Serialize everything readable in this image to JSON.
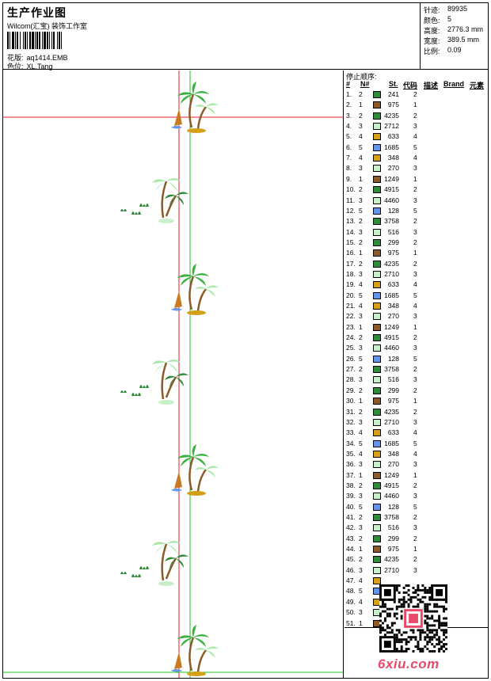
{
  "header": {
    "title": "生产作业图",
    "company": "Wilcom(汇宝) 装饰工作室",
    "design_label": "花版:",
    "design_value": "aq1414.EMB",
    "color_label": "色位:",
    "color_value": "XL.Tang"
  },
  "stats": [
    {
      "label": "针迹:",
      "value": "89935"
    },
    {
      "label": "颜色:",
      "value": "5"
    },
    {
      "label": "高度:",
      "value": "2776.3 mm"
    },
    {
      "label": "宽度:",
      "value": "389.5 mm"
    },
    {
      "label": "比例:",
      "value": "0.09"
    }
  ],
  "table": {
    "stop_title": "停止顺序:",
    "headers": [
      "#",
      "N#",
      "St.",
      "代码",
      "描述",
      "Brand",
      "元素"
    ],
    "rows": [
      {
        "n": "1.",
        "ne": "2",
        "color": "#2e8b3a",
        "code": "241",
        "st": "2"
      },
      {
        "n": "2.",
        "ne": "1",
        "color": "#8b5a2b",
        "code": "975",
        "st": "1"
      },
      {
        "n": "3.",
        "ne": "2",
        "color": "#2e8b3a",
        "code": "4235",
        "st": "2"
      },
      {
        "n": "4.",
        "ne": "3",
        "color": "#c8f0c8",
        "code": "2712",
        "st": "3"
      },
      {
        "n": "5.",
        "ne": "4",
        "color": "#d4a017",
        "code": "633",
        "st": "4"
      },
      {
        "n": "6.",
        "ne": "5",
        "color": "#6495ed",
        "code": "1685",
        "st": "5"
      },
      {
        "n": "7.",
        "ne": "4",
        "color": "#d4a017",
        "code": "348",
        "st": "4"
      },
      {
        "n": "8.",
        "ne": "3",
        "color": "#c8f0c8",
        "code": "270",
        "st": "3"
      },
      {
        "n": "9.",
        "ne": "1",
        "color": "#8b5a2b",
        "code": "1249",
        "st": "1"
      },
      {
        "n": "10.",
        "ne": "2",
        "color": "#2e8b3a",
        "code": "4915",
        "st": "2"
      },
      {
        "n": "11.",
        "ne": "3",
        "color": "#c8f0c8",
        "code": "4460",
        "st": "3"
      },
      {
        "n": "12.",
        "ne": "5",
        "color": "#6495ed",
        "code": "128",
        "st": "5"
      },
      {
        "n": "13.",
        "ne": "2",
        "color": "#2e8b3a",
        "code": "3758",
        "st": "2"
      },
      {
        "n": "14.",
        "ne": "3",
        "color": "#c8f0c8",
        "code": "516",
        "st": "3"
      },
      {
        "n": "15.",
        "ne": "2",
        "color": "#2e8b3a",
        "code": "299",
        "st": "2"
      },
      {
        "n": "16.",
        "ne": "1",
        "color": "#8b5a2b",
        "code": "975",
        "st": "1"
      },
      {
        "n": "17.",
        "ne": "2",
        "color": "#2e8b3a",
        "code": "4235",
        "st": "2"
      },
      {
        "n": "18.",
        "ne": "3",
        "color": "#c8f0c8",
        "code": "2710",
        "st": "3"
      },
      {
        "n": "19.",
        "ne": "4",
        "color": "#d4a017",
        "code": "633",
        "st": "4"
      },
      {
        "n": "20.",
        "ne": "5",
        "color": "#6495ed",
        "code": "1685",
        "st": "5"
      },
      {
        "n": "21.",
        "ne": "4",
        "color": "#d4a017",
        "code": "348",
        "st": "4"
      },
      {
        "n": "22.",
        "ne": "3",
        "color": "#c8f0c8",
        "code": "270",
        "st": "3"
      },
      {
        "n": "23.",
        "ne": "1",
        "color": "#8b5a2b",
        "code": "1249",
        "st": "1"
      },
      {
        "n": "24.",
        "ne": "2",
        "color": "#2e8b3a",
        "code": "4915",
        "st": "2"
      },
      {
        "n": "25.",
        "ne": "3",
        "color": "#c8f0c8",
        "code": "4460",
        "st": "3"
      },
      {
        "n": "26.",
        "ne": "5",
        "color": "#6495ed",
        "code": "128",
        "st": "5"
      },
      {
        "n": "27.",
        "ne": "2",
        "color": "#2e8b3a",
        "code": "3758",
        "st": "2"
      },
      {
        "n": "28.",
        "ne": "3",
        "color": "#c8f0c8",
        "code": "516",
        "st": "3"
      },
      {
        "n": "29.",
        "ne": "2",
        "color": "#2e8b3a",
        "code": "299",
        "st": "2"
      },
      {
        "n": "30.",
        "ne": "1",
        "color": "#8b5a2b",
        "code": "975",
        "st": "1"
      },
      {
        "n": "31.",
        "ne": "2",
        "color": "#2e8b3a",
        "code": "4235",
        "st": "2"
      },
      {
        "n": "32.",
        "ne": "3",
        "color": "#c8f0c8",
        "code": "2710",
        "st": "3"
      },
      {
        "n": "33.",
        "ne": "4",
        "color": "#d4a017",
        "code": "633",
        "st": "4"
      },
      {
        "n": "34.",
        "ne": "5",
        "color": "#6495ed",
        "code": "1685",
        "st": "5"
      },
      {
        "n": "35.",
        "ne": "4",
        "color": "#d4a017",
        "code": "348",
        "st": "4"
      },
      {
        "n": "36.",
        "ne": "3",
        "color": "#c8f0c8",
        "code": "270",
        "st": "3"
      },
      {
        "n": "37.",
        "ne": "1",
        "color": "#8b5a2b",
        "code": "1249",
        "st": "1"
      },
      {
        "n": "38.",
        "ne": "2",
        "color": "#2e8b3a",
        "code": "4915",
        "st": "2"
      },
      {
        "n": "39.",
        "ne": "3",
        "color": "#c8f0c8",
        "code": "4460",
        "st": "3"
      },
      {
        "n": "40.",
        "ne": "5",
        "color": "#6495ed",
        "code": "128",
        "st": "5"
      },
      {
        "n": "41.",
        "ne": "2",
        "color": "#2e8b3a",
        "code": "3758",
        "st": "2"
      },
      {
        "n": "42.",
        "ne": "3",
        "color": "#c8f0c8",
        "code": "516",
        "st": "3"
      },
      {
        "n": "43.",
        "ne": "2",
        "color": "#2e8b3a",
        "code": "299",
        "st": "2"
      },
      {
        "n": "44.",
        "ne": "1",
        "color": "#8b5a2b",
        "code": "975",
        "st": "1"
      },
      {
        "n": "45.",
        "ne": "2",
        "color": "#2e8b3a",
        "code": "4235",
        "st": "2"
      },
      {
        "n": "46.",
        "ne": "3",
        "color": "#c8f0c8",
        "code": "2710",
        "st": "3"
      },
      {
        "n": "47.",
        "ne": "4",
        "color": "#d4a017",
        "code": "",
        "st": ""
      },
      {
        "n": "48.",
        "ne": "5",
        "color": "#6495ed",
        "code": "",
        "st": ""
      },
      {
        "n": "49.",
        "ne": "4",
        "color": "#d4a017",
        "code": "",
        "st": ""
      },
      {
        "n": "50.",
        "ne": "3",
        "color": "#c8f0c8",
        "code": "",
        "st": ""
      },
      {
        "n": "51.",
        "ne": "1",
        "color": "#8b5a2b",
        "code": "",
        "st": ""
      }
    ]
  },
  "watermark": {
    "site": "6xiu.com"
  },
  "colors": {
    "red_guide": "#e02020",
    "green_guide": "#20c020",
    "logo": "#e84b6a"
  }
}
